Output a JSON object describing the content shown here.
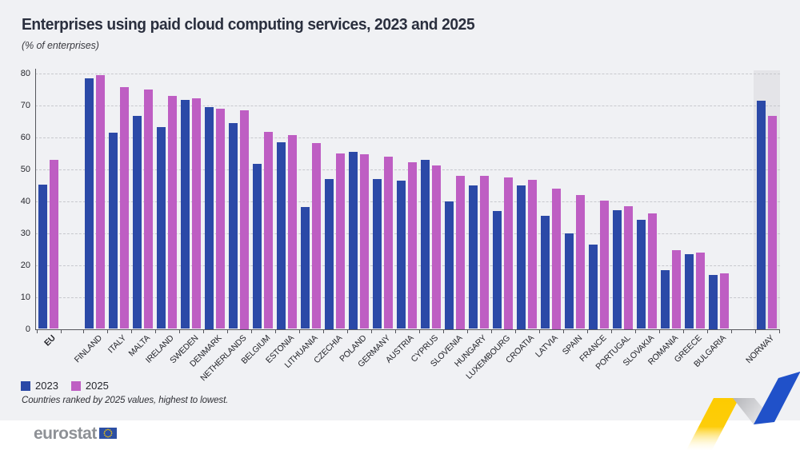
{
  "header": {
    "title": "Enterprises using paid cloud computing services, 2023 and 2025",
    "subtitle": "(% of enterprises)"
  },
  "legend": {
    "item_2023": "2023",
    "item_2025": "2025"
  },
  "footnote": "Countries ranked by 2025 values, highest to lowest.",
  "footer": {
    "brand": "eurostat"
  },
  "chart_data": {
    "type": "bar",
    "title": "Enterprises using paid cloud computing services, 2023 and 2025",
    "ylabel": "% of enterprises",
    "ylim": [
      0,
      80
    ],
    "ytick_step": 10,
    "yticks": [
      0,
      10,
      20,
      30,
      40,
      50,
      60,
      70,
      80
    ],
    "grid": "horizontal-dashed",
    "legend_position": "bottom-left",
    "note": "Countries ranked by 2025 values, highest to lowest.",
    "colors": {
      "2023": "#2b49a7",
      "2025": "#be5ec3",
      "highlight_band": "#e4e4e8"
    },
    "categories": [
      "EU",
      "FINLAND",
      "ITALY",
      "MALTA",
      "IRELAND",
      "SWEDEN",
      "DENMARK",
      "NETHERLANDS",
      "BELGIUM",
      "ESTONIA",
      "LITHUANIA",
      "CZECHIA",
      "POLAND",
      "GERMANY",
      "AUSTRIA",
      "CYPRUS",
      "SLOVENIA",
      "HUNGARY",
      "LUXEMBOURG",
      "CROATIA",
      "LATVIA",
      "SPAIN",
      "FRANCE",
      "PORTUGAL",
      "SLOVAKIA",
      "ROMANIA",
      "GREECE",
      "BULGARIA",
      "NORWAY"
    ],
    "series": [
      {
        "name": "2023",
        "values": [
          45.2,
          78.3,
          61.4,
          66.7,
          63.1,
          71.6,
          69.5,
          64.3,
          51.6,
          58.5,
          38.1,
          47.0,
          55.5,
          46.9,
          46.4,
          52.8,
          40.0,
          44.8,
          36.8,
          45.0,
          35.4,
          29.8,
          26.5,
          37.2,
          34.1,
          18.3,
          23.3,
          17.0,
          71.5
        ]
      },
      {
        "name": "2025",
        "values": [
          52.9,
          79.3,
          75.6,
          74.9,
          72.9,
          72.2,
          68.9,
          68.5,
          61.6,
          60.7,
          58.1,
          54.8,
          54.6,
          53.9,
          52.1,
          51.2,
          48.0,
          47.8,
          47.5,
          46.6,
          44.0,
          41.8,
          40.2,
          38.5,
          36.2,
          24.6,
          23.9,
          17.3,
          66.6
        ]
      }
    ],
    "bold_categories": [
      "EU"
    ],
    "gap_before": [
      "FINLAND",
      "NORWAY"
    ],
    "highlighted_category": "NORWAY"
  }
}
